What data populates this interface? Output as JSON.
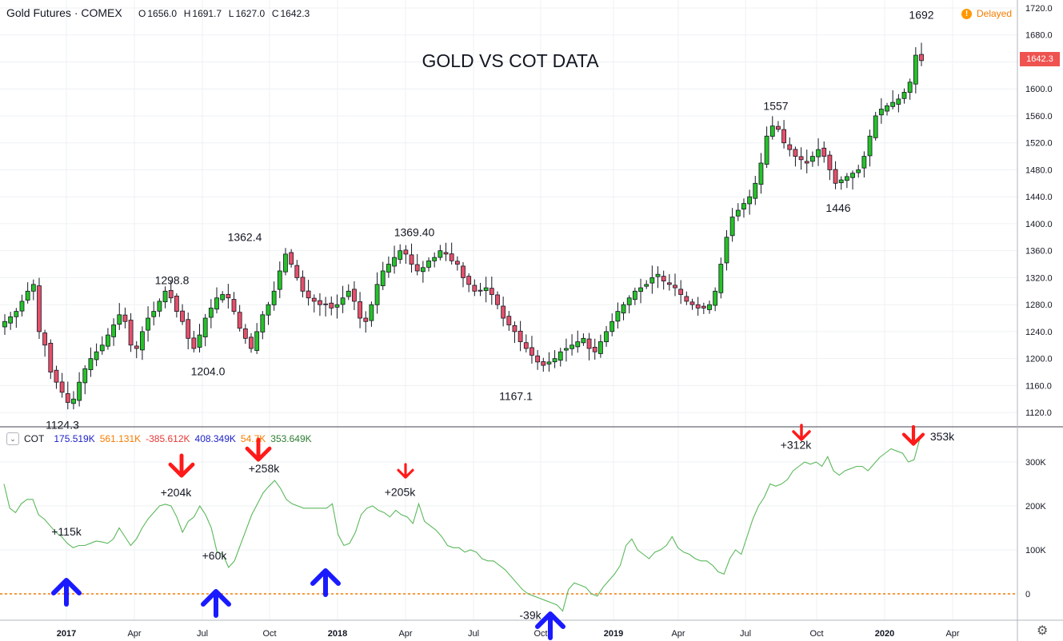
{
  "header": {
    "symbol": "Gold Futures · COMEX",
    "ohlc": [
      {
        "k": "O",
        "v": "1656.0"
      },
      {
        "k": "H",
        "v": "1691.7"
      },
      {
        "k": "L",
        "v": "1627.0"
      },
      {
        "k": "C",
        "v": "1642.3"
      }
    ],
    "status": "Delayed",
    "status_icon": "exclamation-icon"
  },
  "chart_title": "GOLD VS COT DATA",
  "last_price_tag": "1642.3",
  "cot_legend": {
    "name": "COT",
    "values": [
      {
        "v": "175.519K",
        "color": "#1e22c8"
      },
      {
        "v": "561.131K",
        "color": "#f57c00"
      },
      {
        "v": "-385.612K",
        "color": "#e53935"
      },
      {
        "v": "408.349K",
        "color": "#1e22c8"
      },
      {
        "v": "54.7K",
        "color": "#f57c00"
      },
      {
        "v": "353.649K",
        "color": "#2e7d32"
      }
    ]
  },
  "colors": {
    "up": "#26c228",
    "down": "#e5506a",
    "cot_line": "#5cb85c",
    "zero_line": "#f57c00",
    "arrow_up": "#1a1aff",
    "arrow_down": "#ff1a1a",
    "grid": "#eef0f3"
  },
  "chart_data": [
    {
      "type": "candlestick",
      "title": "GOLD VS COT DATA",
      "ylim": [
        1100,
        1720
      ],
      "y_ticks": [
        1120,
        1160,
        1200,
        1240,
        1280,
        1320,
        1360,
        1400,
        1440,
        1480,
        1520,
        1560,
        1600,
        1640,
        1680,
        1720
      ],
      "y_tick_labels": [
        "1120.0",
        "1160.0",
        "1200.0",
        "1240.0",
        "1280.0",
        "1320.0",
        "1360.0",
        "1400.0",
        "1440.0",
        "1480.0",
        "1520.0",
        "1560.0",
        "1600.0",
        "1640.0",
        "1680.0",
        "1720.0"
      ],
      "close_path": [
        1255,
        1262,
        1270,
        1285,
        1300,
        1310,
        1240,
        1220,
        1180,
        1165,
        1150,
        1135,
        1140,
        1165,
        1185,
        1200,
        1210,
        1220,
        1235,
        1250,
        1265,
        1255,
        1220,
        1215,
        1240,
        1260,
        1270,
        1285,
        1300,
        1290,
        1270,
        1255,
        1230,
        1215,
        1235,
        1260,
        1275,
        1290,
        1295,
        1290,
        1270,
        1245,
        1230,
        1215,
        1240,
        1265,
        1280,
        1300,
        1330,
        1355,
        1340,
        1320,
        1300,
        1290,
        1285,
        1280,
        1280,
        1275,
        1280,
        1290,
        1300,
        1285,
        1260,
        1255,
        1280,
        1310,
        1330,
        1340,
        1350,
        1360,
        1355,
        1340,
        1330,
        1335,
        1345,
        1350,
        1360,
        1355,
        1345,
        1340,
        1320,
        1310,
        1300,
        1300,
        1305,
        1295,
        1280,
        1260,
        1250,
        1240,
        1225,
        1215,
        1205,
        1195,
        1190,
        1195,
        1200,
        1210,
        1215,
        1220,
        1225,
        1230,
        1215,
        1210,
        1225,
        1240,
        1255,
        1270,
        1280,
        1290,
        1300,
        1305,
        1310,
        1320,
        1325,
        1315,
        1310,
        1305,
        1295,
        1285,
        1280,
        1275,
        1275,
        1280,
        1300,
        1340,
        1380,
        1410,
        1420,
        1430,
        1440,
        1460,
        1490,
        1530,
        1545,
        1540,
        1520,
        1510,
        1500,
        1495,
        1490,
        1500,
        1510,
        1500,
        1480,
        1460,
        1465,
        1470,
        1475,
        1480,
        1500,
        1530,
        1560,
        1570,
        1575,
        1580,
        1585,
        1595,
        1610,
        1650,
        1642
      ],
      "labels": [
        {
          "text": "1124.3",
          "value": 1124.3,
          "position": "below"
        },
        {
          "text": "1298.8",
          "value": 1298.8,
          "position": "above"
        },
        {
          "text": "1204.0",
          "value": 1204.0,
          "position": "below"
        },
        {
          "text": "1362.4",
          "value": 1362.4,
          "position": "above"
        },
        {
          "text": "1369.40",
          "value": 1369.4,
          "position": "above"
        },
        {
          "text": "1167.1",
          "value": 1167.1,
          "position": "below"
        },
        {
          "text": "1557",
          "value": 1557,
          "position": "above"
        },
        {
          "text": "1446",
          "value": 1446,
          "position": "below"
        },
        {
          "text": "1692",
          "value": 1692,
          "position": "above"
        }
      ]
    },
    {
      "type": "line",
      "name": "COT",
      "ylim": [
        -60,
        370
      ],
      "y_ticks": [
        0,
        100,
        200,
        300
      ],
      "y_tick_labels": [
        "0",
        "100K",
        "200K",
        "300K"
      ],
      "zero_line": 0,
      "values": [
        250,
        195,
        185,
        205,
        215,
        215,
        180,
        170,
        155,
        140,
        130,
        115,
        105,
        110,
        110,
        115,
        120,
        118,
        115,
        125,
        150,
        130,
        110,
        125,
        150,
        170,
        185,
        200,
        204,
        200,
        175,
        140,
        165,
        175,
        200,
        180,
        150,
        95,
        90,
        60,
        75,
        110,
        145,
        180,
        205,
        230,
        245,
        258,
        240,
        215,
        205,
        200,
        195,
        195,
        195,
        195,
        195,
        205,
        135,
        110,
        115,
        140,
        180,
        195,
        200,
        190,
        185,
        175,
        190,
        180,
        175,
        160,
        205,
        165,
        155,
        145,
        130,
        110,
        105,
        105,
        95,
        100,
        95,
        80,
        75,
        75,
        65,
        55,
        40,
        25,
        10,
        0,
        -5,
        -10,
        -15,
        -20,
        -25,
        -39,
        10,
        25,
        20,
        15,
        0,
        -5,
        15,
        30,
        45,
        65,
        110,
        125,
        100,
        90,
        80,
        95,
        100,
        110,
        130,
        105,
        95,
        90,
        80,
        75,
        75,
        65,
        50,
        45,
        80,
        100,
        90,
        130,
        170,
        200,
        220,
        250,
        245,
        250,
        260,
        280,
        290,
        300,
        295,
        300,
        290,
        312,
        280,
        270,
        280,
        285,
        290,
        290,
        280,
        295,
        310,
        320,
        330,
        325,
        320,
        300,
        305,
        353
      ]
    }
  ],
  "x_axis": {
    "labels": [
      "2017",
      "Apr",
      "Jul",
      "Oct",
      "2018",
      "Apr",
      "Jul",
      "Oct",
      "2019",
      "Apr",
      "Jul",
      "Oct",
      "2020",
      "Apr"
    ],
    "bold": [
      true,
      false,
      false,
      false,
      true,
      false,
      false,
      false,
      true,
      false,
      false,
      false,
      true,
      false
    ]
  },
  "cot_annotations": [
    {
      "text": "+115k",
      "value": 115
    },
    {
      "text": "+204k",
      "value": 204
    },
    {
      "text": "+60k",
      "value": 60
    },
    {
      "text": "+258k",
      "value": 258
    },
    {
      "text": "+205k",
      "value": 205
    },
    {
      "text": "-39k",
      "value": -39
    },
    {
      "text": "+312k",
      "value": 312
    },
    {
      "text": "353k",
      "value": 353
    }
  ]
}
